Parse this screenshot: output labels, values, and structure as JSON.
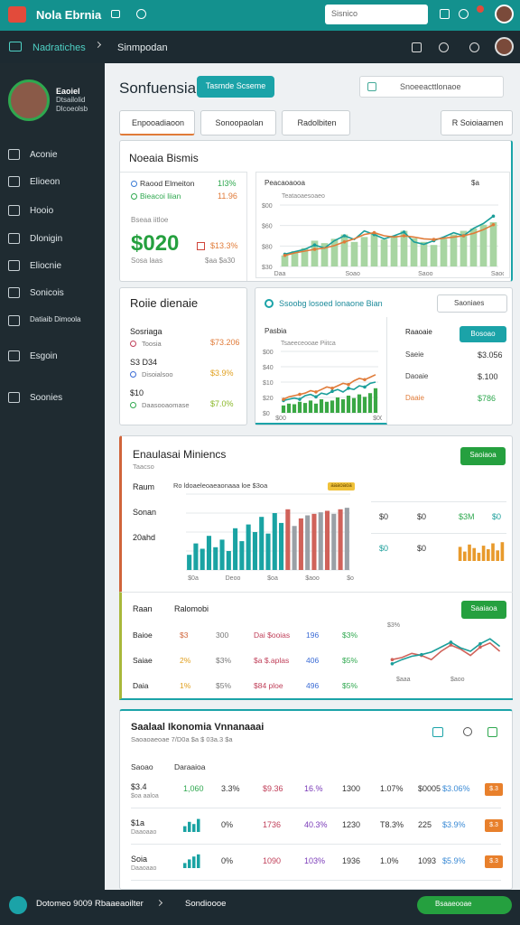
{
  "topbar": {
    "app_name": "Nola Ebrnia",
    "search": "Sisnico"
  },
  "navbar": {
    "section": "Nadratiches",
    "page": "Sinmpodan"
  },
  "sidebar": {
    "user": [
      "Eaoiel",
      "Dtsailolid",
      "Dlcoeolsb"
    ],
    "menu": [
      "Aconie",
      "Elioeon",
      "Hooio",
      "Dlonigin",
      "Eliocnie",
      "Sonicois",
      "Datiaib Dimoola",
      "Esgoin",
      "Soonies"
    ]
  },
  "header": {
    "title": "Sonfuensia",
    "button": "Tasmde Scseme",
    "search": "Snoeeacttlonaoe"
  },
  "tabs": [
    "Enpooadiaoon",
    "Sonoopaolan",
    "Radolbiten",
    "R  Soioiaamen"
  ],
  "business": {
    "title": "Noeaia Bismis",
    "rows": [
      [
        "Raood Elmeiton",
        "1I3%"
      ],
      [
        "Bieacoi liian",
        "11.96"
      ]
    ],
    "metric_label": "Bseaa iitloe",
    "metric": "$020",
    "change": "$13.3%",
    "foot": [
      "Sosa laas",
      "$aa $a30"
    ]
  },
  "chart_a": {
    "title": "Peacaoaooa",
    "subtitle": "Teataoaesoaeo",
    "corner": "$a",
    "y_labels": [
      "$00",
      "$60",
      "$80",
      "$30"
    ],
    "x_labels": [
      "Daa",
      "Soao",
      "Saoo",
      "Saoo"
    ],
    "ylim": [
      0,
      100
    ],
    "series": [
      {
        "type": "bar",
        "color": "#a8d5a2",
        "values": [
          18,
          25,
          30,
          42,
          38,
          45,
          52,
          40,
          48,
          55,
          44,
          50,
          58,
          46,
          40,
          35,
          45,
          52,
          58,
          62,
          68,
          72
        ]
      },
      {
        "type": "line",
        "color": "#1a9e9a",
        "values": [
          20,
          24,
          28,
          35,
          30,
          42,
          50,
          44,
          58,
          52,
          45,
          50,
          56,
          40,
          36,
          42,
          48,
          55,
          50,
          62,
          70,
          82
        ]
      },
      {
        "type": "line",
        "color": "#e07b39",
        "values": [
          18,
          22,
          25,
          28,
          30,
          34,
          40,
          45,
          52,
          55,
          50,
          48,
          50,
          48,
          45,
          44,
          46,
          48,
          50,
          54,
          60,
          68
        ]
      }
    ]
  },
  "profile": {
    "title": "Roiie dienaie",
    "rows": [
      [
        "Sosriaga",
        "Toosia",
        "$73.206"
      ],
      [
        "S3 D34",
        "Disoialsoo",
        "$3.9%"
      ],
      [
        "$10",
        "Daasooaomase",
        "$7.0%"
      ]
    ]
  },
  "chart_b": {
    "title": "Ssoobg losoed lonaone Bian",
    "filter": "Saoniaes",
    "subtitle": "Pasbia",
    "caption": "Tsaeeceooae Piitca",
    "y_labels": [
      "$00",
      "$40",
      "$10",
      "$20",
      "$0"
    ],
    "x_labels": [
      "$00",
      "$00"
    ],
    "ylim": [
      0,
      100
    ],
    "series": [
      {
        "type": "bar",
        "color": "#3aa844",
        "values": [
          12,
          15,
          14,
          18,
          16,
          20,
          15,
          22,
          18,
          20,
          25,
          22,
          28,
          24,
          30,
          26,
          32,
          40
        ]
      },
      {
        "type": "line",
        "color": "#1a9e9a",
        "values": [
          20,
          22,
          24,
          22,
          28,
          30,
          26,
          32,
          30,
          35,
          38,
          34,
          40,
          38,
          44,
          42,
          48,
          50
        ]
      },
      {
        "type": "line",
        "color": "#e07b39",
        "values": [
          22,
          26,
          28,
          30,
          32,
          36,
          34,
          38,
          42,
          40,
          44,
          48,
          46,
          52,
          56,
          54,
          58,
          62
        ]
      }
    ]
  },
  "summary": {
    "title": "Raaoaie",
    "button": "Bosoao",
    "rows": [
      [
        "Saeie",
        "$3.056"
      ],
      [
        "Daoaie",
        "$.100"
      ],
      [
        "Daaie",
        "$786"
      ]
    ]
  },
  "analytics": {
    "title": "Enaulasai Miniencs",
    "subtitle": "Taacso",
    "button": "Saoiaoa",
    "badge": "aaaoaoa",
    "row_labels": [
      "Raum",
      "Sonan",
      "20ahd"
    ],
    "chart_caption": "Ro ldoaeleoaeaonaaa loe $3oa",
    "x_labels": [
      "$0a",
      "Deoo",
      "$oa",
      "$aoo",
      "$oa"
    ],
    "chart": {
      "ylim": [
        0,
        100
      ],
      "values": [
        20,
        35,
        28,
        45,
        30,
        40,
        25,
        55,
        38,
        60,
        50,
        70,
        48,
        75,
        62,
        80,
        58,
        68,
        72,
        74,
        76,
        78,
        74,
        80,
        82
      ],
      "colors": [
        "#1aa3a3",
        "#1aa3a3",
        "#1aa3a3",
        "#1aa3a3",
        "#1aa3a3",
        "#1aa3a3",
        "#1aa3a3",
        "#1aa3a3",
        "#1aa3a3",
        "#1aa3a3",
        "#1aa3a3",
        "#1aa3a3",
        "#1aa3a3",
        "#1aa3a3",
        "#1aa3a3",
        "#d0625a",
        "#9aa0a6",
        "#d0625a",
        "#9aa0a6",
        "#d0625a",
        "#9aa0a6",
        "#d0625a",
        "#9aa0a6",
        "#d0625a",
        "#9aa0a6"
      ]
    },
    "stats": [
      [
        "$0",
        "$0",
        "$3M",
        "$0"
      ],
      [
        "$0",
        "$0"
      ]
    ],
    "side_chart": {
      "ylim": [
        0,
        100
      ],
      "color": "#e89a2c",
      "values": [
        60,
        40,
        70,
        55,
        35,
        65,
        50,
        75,
        45,
        80
      ]
    },
    "table_heads": [
      "Raan",
      "Ralomobi"
    ],
    "table_button": "Saaiaoa",
    "table": [
      [
        "Baioe",
        "$3",
        "300",
        "Dai $ooias",
        "196",
        "$3%"
      ],
      [
        "Saiae",
        "2%",
        "$3%",
        "$a $.aplas",
        "406",
        "$5%"
      ],
      [
        "Daia",
        "1%",
        "$5%",
        "$84 ploe",
        "496",
        "$5%"
      ]
    ],
    "line_chart": {
      "label": "$3%",
      "x_labels": [
        "$aaa",
        "$aoo"
      ],
      "ylim": [
        0,
        100
      ],
      "series": [
        {
          "type": "line",
          "color": "#d0625a",
          "values": [
            30,
            35,
            45,
            40,
            30,
            50,
            65,
            55,
            40,
            60,
            70,
            50
          ]
        },
        {
          "type": "line",
          "color": "#1a9e9a",
          "values": [
            20,
            30,
            38,
            42,
            48,
            60,
            72,
            58,
            50,
            68,
            80,
            62
          ]
        }
      ]
    }
  },
  "economics": {
    "title": "Saalaal Ikonomia Vnnanaaai",
    "subtitle": "Saoaoaeoae 7/D0a $a  $ 03a.3 $a",
    "col_heads": [
      "Saoao",
      "Daraaioa"
    ],
    "rows": [
      {
        "label": "$3.4",
        "sub": "$oa aaloa",
        "cells": [
          "1,060",
          "3.3%",
          "$9.36",
          "16.%",
          "1300",
          "1.07%",
          "$0005",
          "$3.06%"
        ],
        "badge": "$.3"
      },
      {
        "label": "$1a",
        "sub": "Daaoaao",
        "bars": [
          40,
          70,
          55,
          90
        ],
        "cells": [
          "0%",
          "1736",
          "40.3%",
          "1230",
          "T8.3%",
          "225",
          "$3.9%"
        ],
        "badge": "$.3"
      },
      {
        "label": "Soia",
        "sub": "Daaoaao",
        "bars": [
          35,
          60,
          80,
          95
        ],
        "cells": [
          "0%",
          "1090",
          "103%",
          "1936",
          "1.0%",
          "1093",
          "$5.9%"
        ],
        "badge": "$.3"
      }
    ]
  },
  "statusbar": {
    "status": "Dotomeo 9009 Rbaaeaoilter",
    "link": "Sondioooe",
    "button": "Bsaaeooae"
  }
}
